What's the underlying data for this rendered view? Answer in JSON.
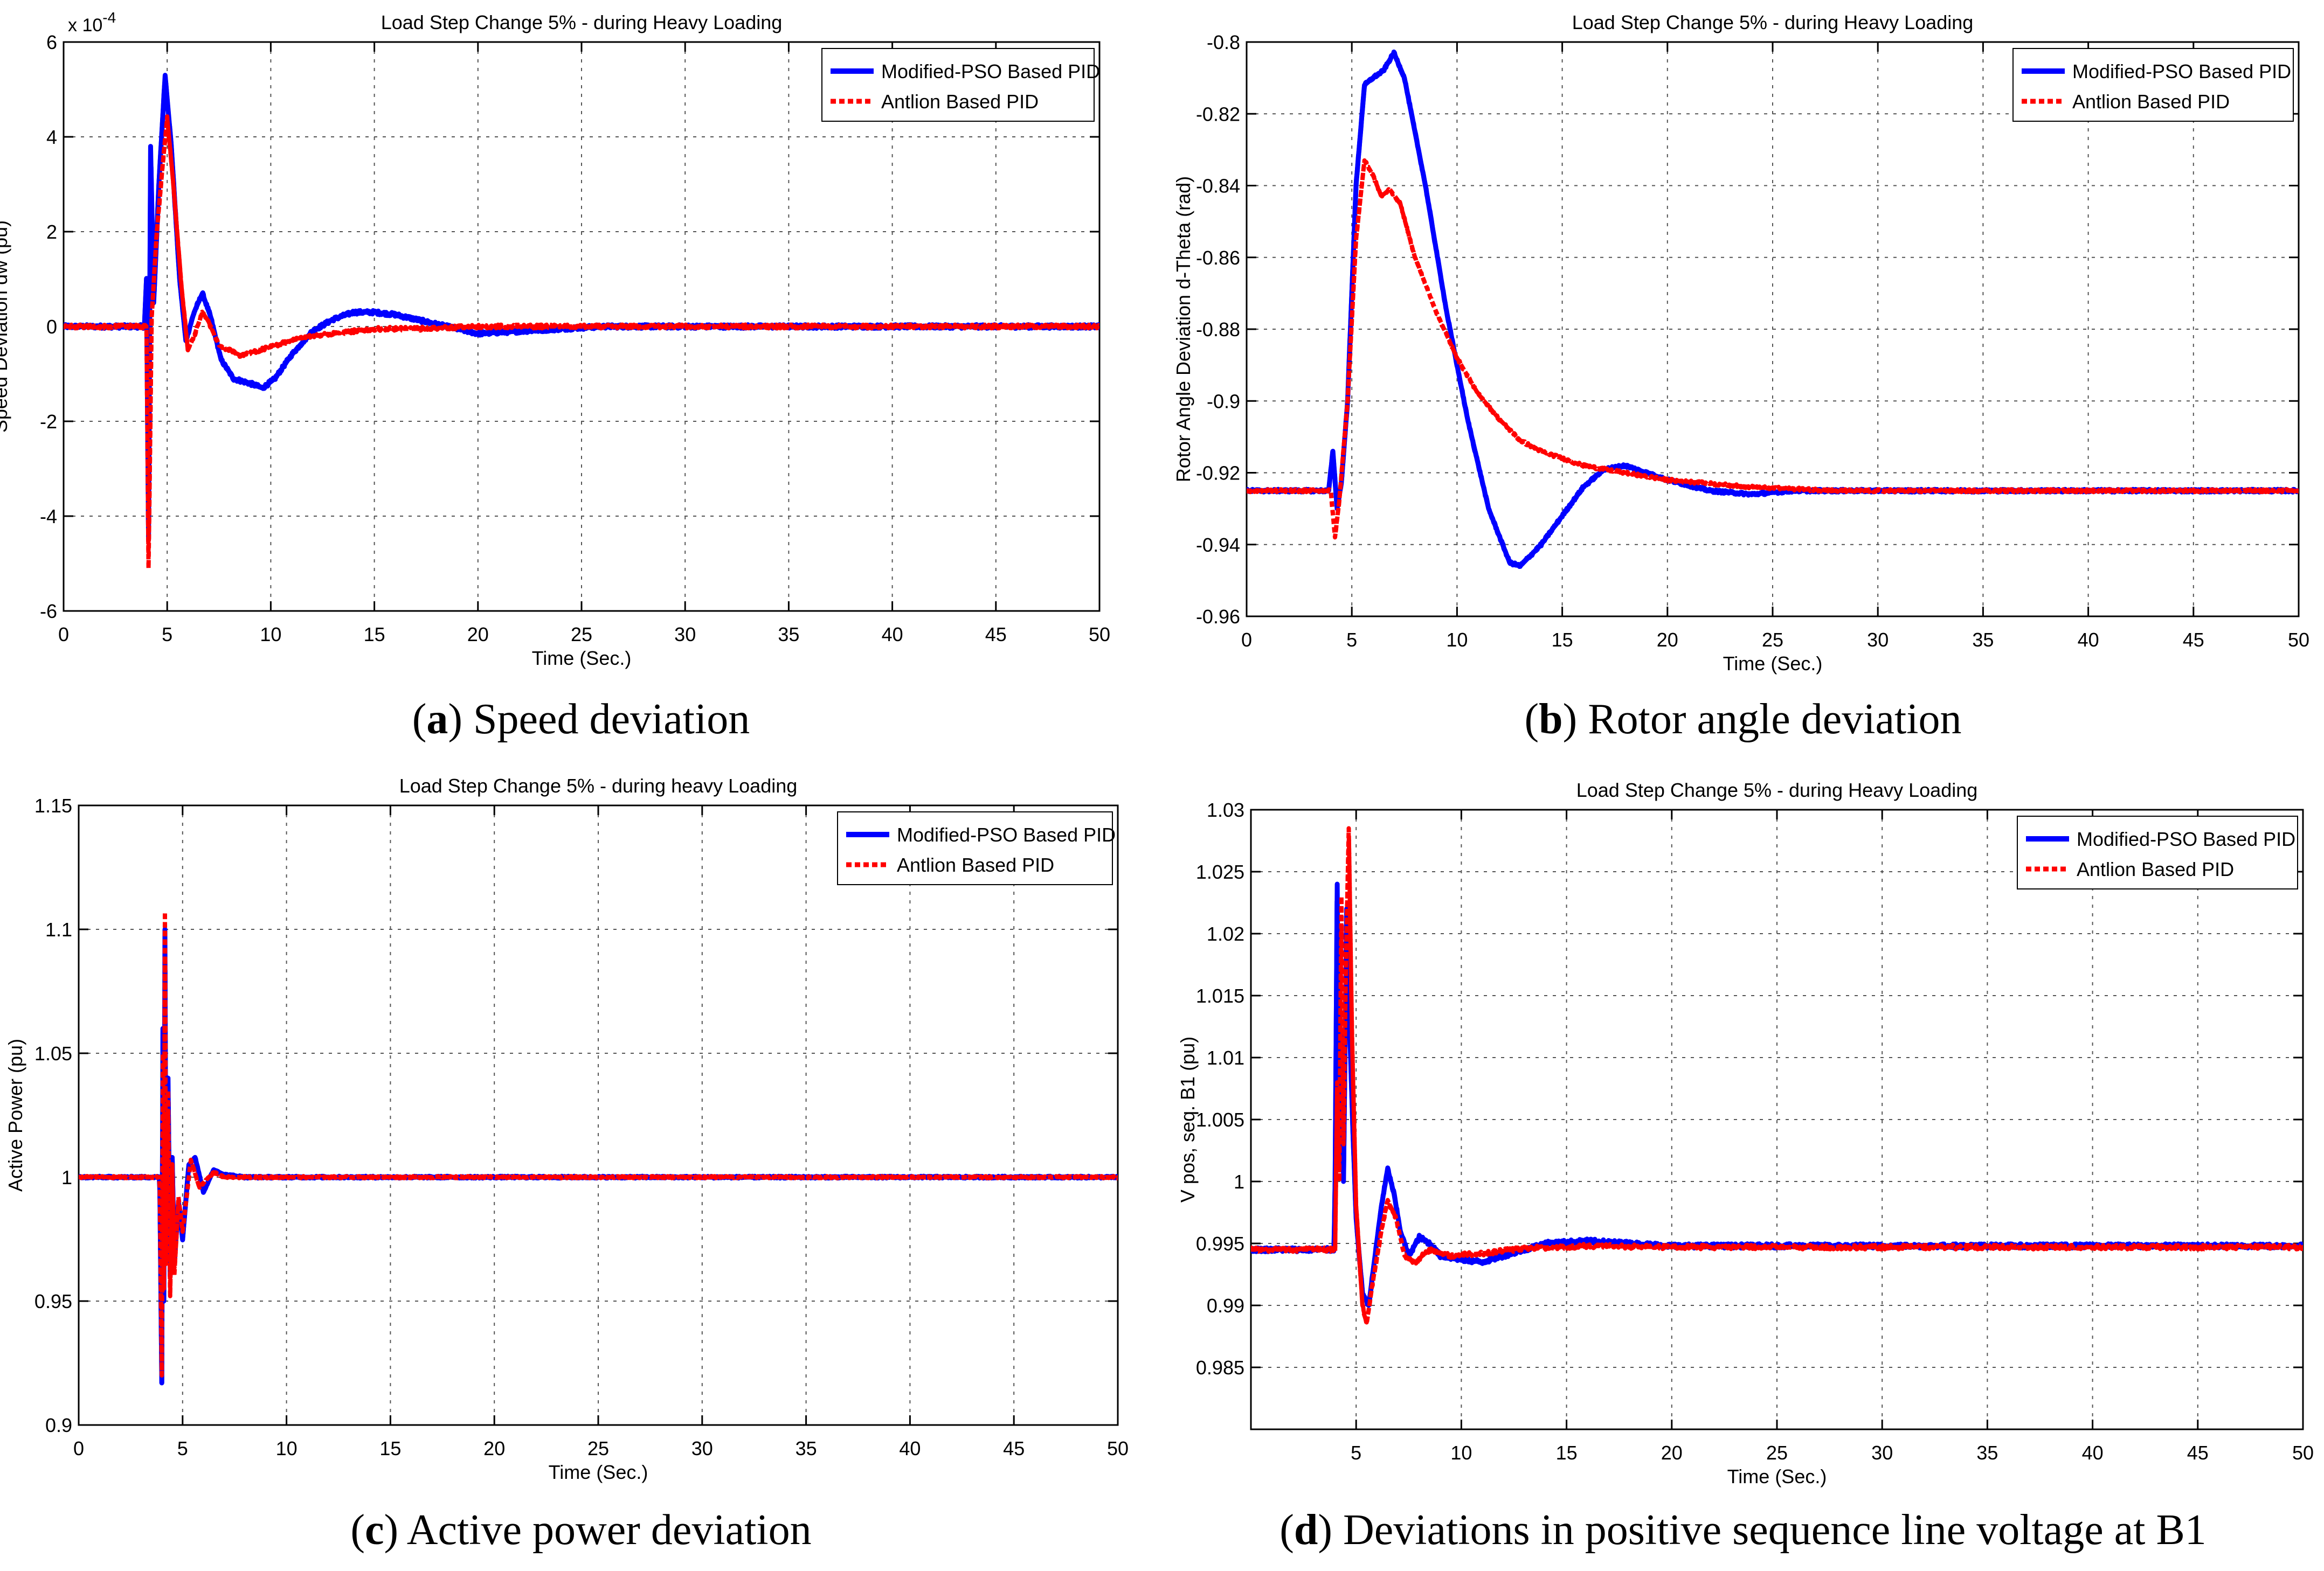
{
  "figure": {
    "captions": [
      {
        "letter": "a",
        "text": "Speed deviation"
      },
      {
        "letter": "b",
        "text": "Rotor angle deviation"
      },
      {
        "letter": "c",
        "text": "Active power deviation"
      },
      {
        "letter": "d",
        "text": "Deviations in positive sequence line voltage at B1"
      }
    ]
  },
  "colors": {
    "modified_pso": "#0000ff",
    "antlion": "#ff0000",
    "grid": "#555555",
    "axis": "#000000"
  },
  "chart_data": [
    {
      "id": "a",
      "type": "line",
      "title": "Load Step Change 5% - during Heavy Loading",
      "xlabel": "Time (Sec.)",
      "ylabel": "Speed Deviation dw (pu)",
      "exponent_label": "x 10",
      "exponent_power": "-4",
      "xlim": [
        0,
        50
      ],
      "ylim": [
        -6,
        6
      ],
      "xticks": [
        0,
        5,
        10,
        15,
        20,
        25,
        30,
        35,
        40,
        45,
        50
      ],
      "yticks": [
        -6,
        -4,
        -2,
        0,
        2,
        4,
        6
      ],
      "grid": true,
      "legend_position": "top-right",
      "noise": 0.08,
      "series": [
        {
          "name": "Modified-PSO Based PID",
          "style": "solid",
          "points": [
            [
              0,
              0
            ],
            [
              3.9,
              0
            ],
            [
              4.0,
              1.0
            ],
            [
              4.1,
              -4.5
            ],
            [
              4.2,
              3.8
            ],
            [
              4.35,
              0.5
            ],
            [
              4.6,
              3.0
            ],
            [
              4.9,
              5.3
            ],
            [
              5.2,
              3.8
            ],
            [
              5.6,
              1.0
            ],
            [
              5.9,
              -0.3
            ],
            [
              6.3,
              0.3
            ],
            [
              6.7,
              0.7
            ],
            [
              7.1,
              0.2
            ],
            [
              7.6,
              -0.7
            ],
            [
              8.2,
              -1.1
            ],
            [
              9.0,
              -1.2
            ],
            [
              9.6,
              -1.3
            ],
            [
              10.2,
              -1.1
            ],
            [
              11,
              -0.6
            ],
            [
              12,
              -0.1
            ],
            [
              13,
              0.15
            ],
            [
              14,
              0.3
            ],
            [
              15,
              0.3
            ],
            [
              16,
              0.25
            ],
            [
              17,
              0.15
            ],
            [
              18,
              0.05
            ],
            [
              19,
              -0.05
            ],
            [
              20,
              -0.15
            ],
            [
              22,
              -0.1
            ],
            [
              24,
              -0.05
            ],
            [
              26,
              0
            ],
            [
              50,
              0
            ]
          ]
        },
        {
          "name": "Antlion Based PID",
          "style": "dashed",
          "points": [
            [
              0,
              0
            ],
            [
              4.0,
              0
            ],
            [
              4.1,
              -5.1
            ],
            [
              4.25,
              0.2
            ],
            [
              4.5,
              2.0
            ],
            [
              4.8,
              3.5
            ],
            [
              5.0,
              4.4
            ],
            [
              5.3,
              3.0
            ],
            [
              5.7,
              0.8
            ],
            [
              6.0,
              -0.5
            ],
            [
              6.3,
              -0.2
            ],
            [
              6.7,
              0.3
            ],
            [
              7.0,
              0.1
            ],
            [
              7.5,
              -0.4
            ],
            [
              8.5,
              -0.6
            ],
            [
              9.5,
              -0.5
            ],
            [
              11,
              -0.3
            ],
            [
              12,
              -0.2
            ],
            [
              13,
              -0.15
            ],
            [
              14,
              -0.1
            ],
            [
              15,
              -0.05
            ],
            [
              17,
              -0.05
            ],
            [
              20,
              0
            ],
            [
              50,
              0
            ]
          ]
        }
      ]
    },
    {
      "id": "b",
      "type": "line",
      "title": "Load Step Change 5% - during Heavy Loading",
      "xlabel": "Time (Sec.)",
      "ylabel": "Rotor Angle Deviation d-Theta (rad)",
      "xlim": [
        0,
        50
      ],
      "ylim": [
        -0.96,
        -0.8
      ],
      "xticks": [
        0,
        5,
        10,
        15,
        20,
        25,
        30,
        35,
        40,
        45,
        50
      ],
      "yticks": [
        -0.96,
        -0.94,
        -0.92,
        -0.9,
        -0.88,
        -0.86,
        -0.84,
        -0.82,
        -0.8
      ],
      "ytick_labels": [
        "-0.96",
        "-0.94",
        "-0.92",
        "-0.9",
        "-0.88",
        "-0.86",
        "-0.84",
        "-0.82",
        "-0.8"
      ],
      "grid": true,
      "legend_position": "top-right",
      "noise": 0.0008,
      "series": [
        {
          "name": "Modified-PSO Based PID",
          "style": "solid",
          "points": [
            [
              0,
              -0.925
            ],
            [
              3.9,
              -0.925
            ],
            [
              4.1,
              -0.914
            ],
            [
              4.3,
              -0.93
            ],
            [
              4.5,
              -0.923
            ],
            [
              4.8,
              -0.9
            ],
            [
              5.2,
              -0.84
            ],
            [
              5.6,
              -0.812
            ],
            [
              6.0,
              -0.81
            ],
            [
              6.5,
              -0.808
            ],
            [
              7.0,
              -0.803
            ],
            [
              7.5,
              -0.81
            ],
            [
              8.5,
              -0.84
            ],
            [
              9.5,
              -0.875
            ],
            [
              10.5,
              -0.905
            ],
            [
              11.5,
              -0.93
            ],
            [
              12.5,
              -0.945
            ],
            [
              13,
              -0.946
            ],
            [
              14,
              -0.94
            ],
            [
              15,
              -0.932
            ],
            [
              16,
              -0.924
            ],
            [
              17,
              -0.919
            ],
            [
              18,
              -0.918
            ],
            [
              19,
              -0.92
            ],
            [
              20,
              -0.922
            ],
            [
              22,
              -0.925
            ],
            [
              24,
              -0.926
            ],
            [
              26,
              -0.925
            ],
            [
              50,
              -0.925
            ]
          ]
        },
        {
          "name": "Antlion Based PID",
          "style": "dashed",
          "points": [
            [
              0,
              -0.925
            ],
            [
              4.0,
              -0.925
            ],
            [
              4.2,
              -0.938
            ],
            [
              4.4,
              -0.928
            ],
            [
              4.8,
              -0.9
            ],
            [
              5.2,
              -0.855
            ],
            [
              5.6,
              -0.833
            ],
            [
              6.0,
              -0.837
            ],
            [
              6.4,
              -0.843
            ],
            [
              6.8,
              -0.841
            ],
            [
              7.3,
              -0.845
            ],
            [
              8,
              -0.86
            ],
            [
              9,
              -0.875
            ],
            [
              10,
              -0.888
            ],
            [
              11,
              -0.898
            ],
            [
              12,
              -0.905
            ],
            [
              13,
              -0.911
            ],
            [
              14,
              -0.914
            ],
            [
              16,
              -0.918
            ],
            [
              18,
              -0.92
            ],
            [
              20,
              -0.922
            ],
            [
              24,
              -0.924
            ],
            [
              28,
              -0.925
            ],
            [
              50,
              -0.925
            ]
          ]
        }
      ]
    },
    {
      "id": "c",
      "type": "line",
      "title": "Load Step Change 5% - during heavy Loading",
      "xlabel": "Time (Sec.)",
      "ylabel": "Active Power (pu)",
      "xlim": [
        0,
        50
      ],
      "ylim": [
        0.9,
        1.15
      ],
      "xticks": [
        0,
        5,
        10,
        15,
        20,
        25,
        30,
        35,
        40,
        45,
        50
      ],
      "yticks": [
        0.9,
        0.95,
        1,
        1.05,
        1.1,
        1.15
      ],
      "ytick_labels": [
        "0.9",
        "0.95",
        "1",
        "1.05",
        "1.1",
        "1.15"
      ],
      "grid": true,
      "legend_position": "top-right",
      "noise": 0.0008,
      "series": [
        {
          "name": "Modified-PSO Based PID",
          "style": "solid",
          "points": [
            [
              0,
              1.0
            ],
            [
              3.9,
              1.0
            ],
            [
              4.0,
              0.917
            ],
            [
              4.05,
              1.06
            ],
            [
              4.1,
              0.95
            ],
            [
              4.15,
              1.1
            ],
            [
              4.2,
              0.97
            ],
            [
              4.3,
              1.04
            ],
            [
              4.4,
              0.96
            ],
            [
              4.5,
              1.008
            ],
            [
              4.6,
              0.965
            ],
            [
              4.8,
              0.99
            ],
            [
              5.0,
              0.975
            ],
            [
              5.3,
              1.005
            ],
            [
              5.6,
              1.008
            ],
            [
              6.0,
              0.994
            ],
            [
              6.5,
              1.003
            ],
            [
              7.0,
              1.001
            ],
            [
              8,
              1.0
            ],
            [
              50,
              1.0
            ]
          ]
        },
        {
          "name": "Antlion Based PID",
          "style": "dashed",
          "points": [
            [
              0,
              1.0
            ],
            [
              3.9,
              1.0
            ],
            [
              4.0,
              0.92
            ],
            [
              4.05,
              1.05
            ],
            [
              4.1,
              0.955
            ],
            [
              4.15,
              1.107
            ],
            [
              4.2,
              0.965
            ],
            [
              4.3,
              1.035
            ],
            [
              4.4,
              0.952
            ],
            [
              4.5,
              1.005
            ],
            [
              4.6,
              0.96
            ],
            [
              4.8,
              0.992
            ],
            [
              5.0,
              0.978
            ],
            [
              5.4,
              1.007
            ],
            [
              5.8,
              0.996
            ],
            [
              6.5,
              1.002
            ],
            [
              7.0,
              1.0
            ],
            [
              50,
              1.0
            ]
          ]
        }
      ]
    },
    {
      "id": "d",
      "type": "line",
      "title": "Load Step Change 5% - during Heavy Loading",
      "xlabel": "Time (Sec.)",
      "ylabel": "V pos, seq. B1 (pu)",
      "xlim": [
        0,
        50
      ],
      "ylim": [
        0.98,
        1.03
      ],
      "xticks": [
        5,
        10,
        15,
        20,
        25,
        30,
        35,
        40,
        45,
        50
      ],
      "yticks": [
        0.985,
        0.99,
        0.995,
        1,
        1.005,
        1.01,
        1.015,
        1.02,
        1.025,
        1.03
      ],
      "ytick_labels": [
        "0.985",
        "0.99",
        "0.995",
        "1",
        "1.005",
        "1.01",
        "1.015",
        "1.02",
        "1.025",
        "1.03"
      ],
      "grid": true,
      "legend_position": "top-right",
      "noise": 0.00035,
      "series": [
        {
          "name": "Modified-PSO Based PID",
          "style": "solid",
          "points": [
            [
              0,
              0.9945
            ],
            [
              3.95,
              0.9945
            ],
            [
              4.0,
              1.0
            ],
            [
              4.1,
              1.024
            ],
            [
              4.2,
              1.003
            ],
            [
              4.3,
              1.012
            ],
            [
              4.4,
              1.0
            ],
            [
              4.55,
              1.022
            ],
            [
              4.7,
              1.012
            ],
            [
              4.85,
              1.004
            ],
            [
              5.0,
              0.997
            ],
            [
              5.3,
              0.991
            ],
            [
              5.6,
              0.99
            ],
            [
              5.9,
              0.994
            ],
            [
              6.2,
              0.998
            ],
            [
              6.5,
              1.001
            ],
            [
              6.8,
              0.999
            ],
            [
              7.1,
              0.996
            ],
            [
              7.5,
              0.994
            ],
            [
              8,
              0.9955
            ],
            [
              8.5,
              0.995
            ],
            [
              9,
              0.994
            ],
            [
              10,
              0.9937
            ],
            [
              11,
              0.9935
            ],
            [
              12,
              0.994
            ],
            [
              13,
              0.9945
            ],
            [
              14,
              0.995
            ],
            [
              16,
              0.9952
            ],
            [
              18,
              0.995
            ],
            [
              20,
              0.9948
            ],
            [
              50,
              0.9948
            ]
          ]
        },
        {
          "name": "Antlion Based PID",
          "style": "dashed",
          "points": [
            [
              0,
              0.9945
            ],
            [
              4.0,
              0.9945
            ],
            [
              4.1,
              1.008
            ],
            [
              4.2,
              1.0
            ],
            [
              4.3,
              1.023
            ],
            [
              4.4,
              1.003
            ],
            [
              4.5,
              1.016
            ],
            [
              4.65,
              1.0285
            ],
            [
              4.8,
              1.012
            ],
            [
              5.0,
              0.998
            ],
            [
              5.3,
              0.99
            ],
            [
              5.5,
              0.9885
            ],
            [
              5.8,
              0.992
            ],
            [
              6.2,
              0.996
            ],
            [
              6.5,
              0.9985
            ],
            [
              6.9,
              0.997
            ],
            [
              7.3,
              0.994
            ],
            [
              7.8,
              0.9935
            ],
            [
              8.5,
              0.9945
            ],
            [
              9.5,
              0.994
            ],
            [
              11,
              0.9942
            ],
            [
              13,
              0.9946
            ],
            [
              16,
              0.9948
            ],
            [
              20,
              0.9947
            ],
            [
              50,
              0.9947
            ]
          ]
        }
      ]
    }
  ]
}
